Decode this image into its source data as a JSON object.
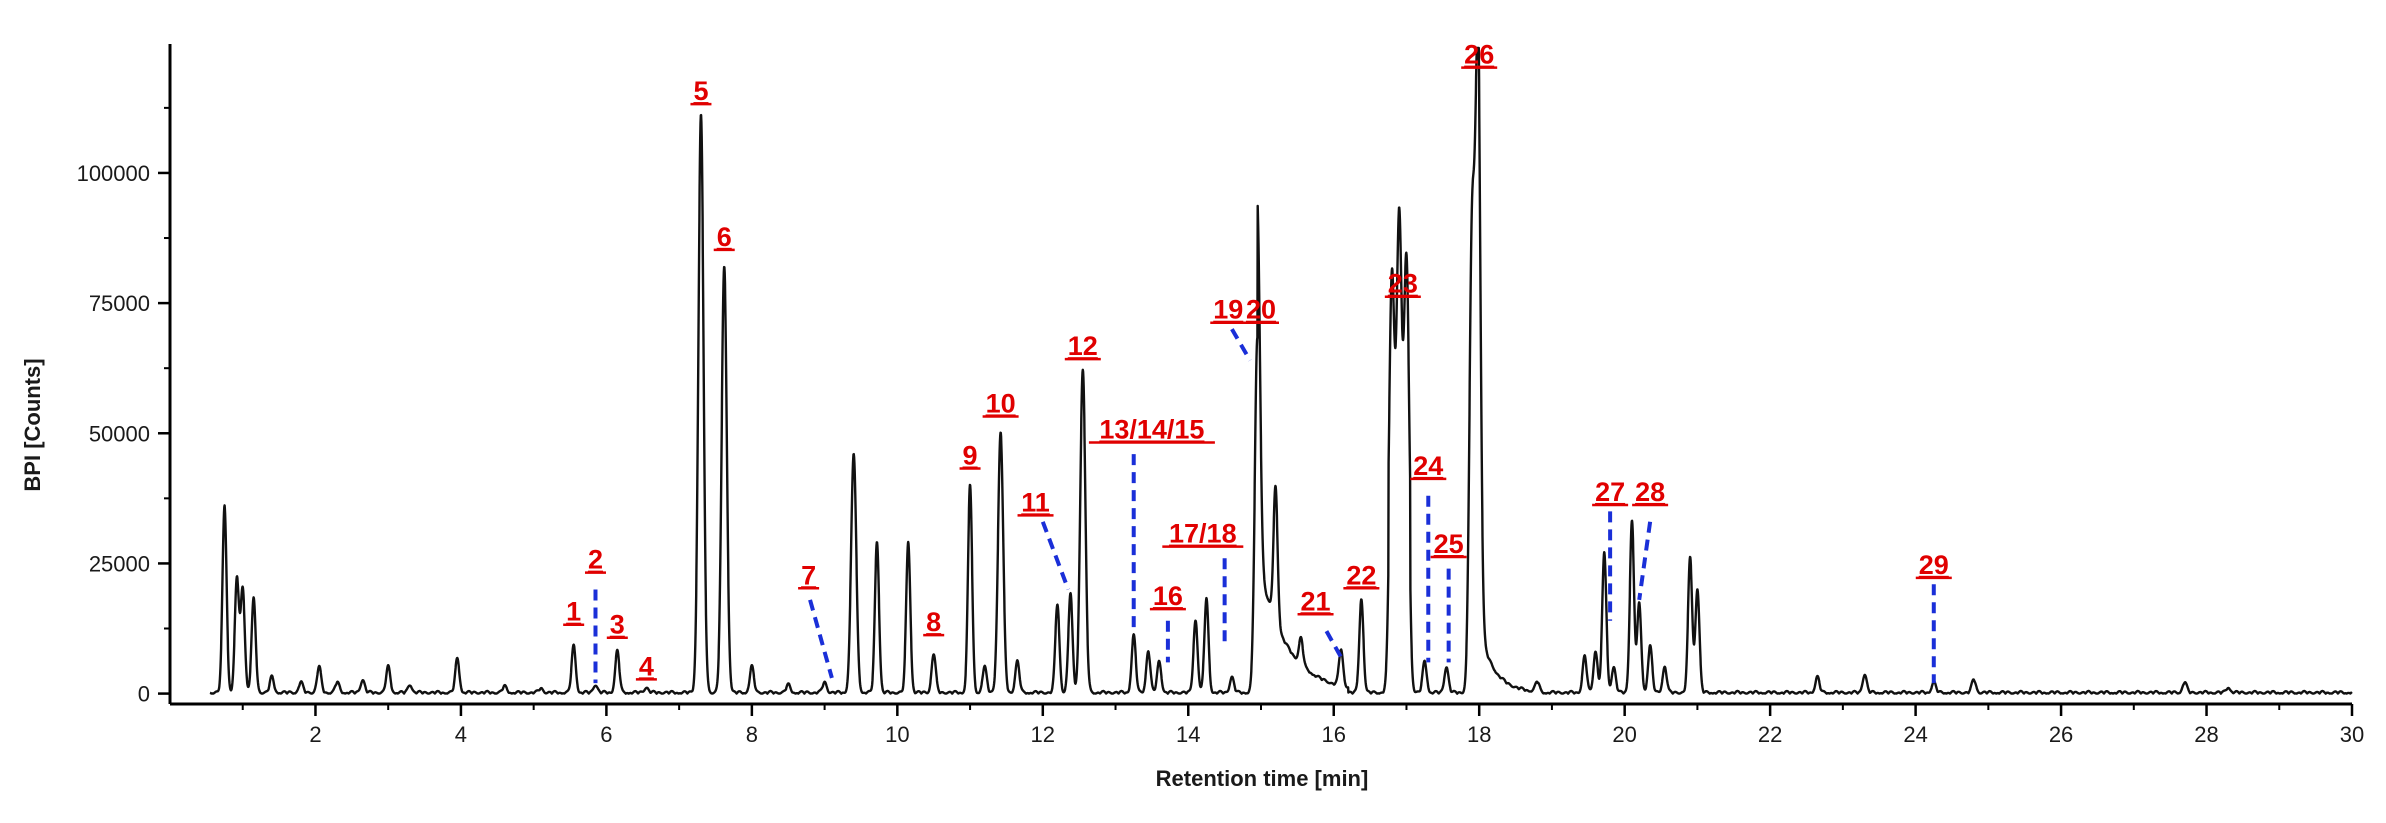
{
  "chart_data": {
    "type": "line",
    "title": "",
    "xlabel": "Retention time [min]",
    "ylabel": "BPI [Counts]",
    "xlim": [
      0,
      30
    ],
    "ylim": [
      -2000,
      124000
    ],
    "x_ticks": [
      2,
      4,
      6,
      8,
      10,
      12,
      14,
      16,
      18,
      20,
      22,
      24,
      26,
      28,
      30
    ],
    "x_tick_labels": [
      "2",
      "4",
      "6",
      "8",
      "10",
      "12",
      "14",
      "16",
      "18",
      "20",
      "22",
      "24",
      "26",
      "28",
      "30"
    ],
    "y_ticks": [
      0,
      25000,
      50000,
      75000,
      100000
    ],
    "y_tick_labels": [
      "0",
      "25000",
      "50000",
      "75000",
      "100000"
    ],
    "grid": false,
    "series": [
      {
        "color": "#111111",
        "peaks": [
          {
            "rt": 0.75,
            "height": 36000
          },
          {
            "rt": 0.92,
            "height": 22000
          },
          {
            "rt": 1.0,
            "height": 20000
          },
          {
            "rt": 1.15,
            "height": 18000
          },
          {
            "rt": 1.4,
            "height": 3000
          },
          {
            "rt": 1.8,
            "height": 2000
          },
          {
            "rt": 2.05,
            "height": 5000
          },
          {
            "rt": 2.3,
            "height": 2000
          },
          {
            "rt": 2.65,
            "height": 2500
          },
          {
            "rt": 3.0,
            "height": 5000
          },
          {
            "rt": 3.3,
            "height": 1500
          },
          {
            "rt": 3.95,
            "height": 6500
          },
          {
            "rt": 4.6,
            "height": 1200
          },
          {
            "rt": 5.1,
            "height": 800
          },
          {
            "rt": 5.55,
            "height": 9000
          },
          {
            "rt": 5.85,
            "height": 1500
          },
          {
            "rt": 6.15,
            "height": 8000
          },
          {
            "rt": 6.55,
            "height": 1000
          },
          {
            "rt": 7.3,
            "height": 111000
          },
          {
            "rt": 7.62,
            "height": 82000
          },
          {
            "rt": 8.0,
            "height": 5000
          },
          {
            "rt": 8.5,
            "height": 1500
          },
          {
            "rt": 9.0,
            "height": 2000
          },
          {
            "rt": 9.4,
            "height": 46000
          },
          {
            "rt": 9.72,
            "height": 29000
          },
          {
            "rt": 10.15,
            "height": 29000
          },
          {
            "rt": 10.5,
            "height": 7500
          },
          {
            "rt": 11.0,
            "height": 40000
          },
          {
            "rt": 11.2,
            "height": 5000
          },
          {
            "rt": 11.42,
            "height": 50000
          },
          {
            "rt": 11.65,
            "height": 6000
          },
          {
            "rt": 12.2,
            "height": 17000
          },
          {
            "rt": 12.38,
            "height": 19000
          },
          {
            "rt": 12.55,
            "height": 62000
          },
          {
            "rt": 13.25,
            "height": 11000
          },
          {
            "rt": 13.45,
            "height": 8000
          },
          {
            "rt": 13.6,
            "height": 6000
          },
          {
            "rt": 14.1,
            "height": 14000
          },
          {
            "rt": 14.25,
            "height": 18000
          },
          {
            "rt": 14.6,
            "height": 3000
          },
          {
            "rt": 14.95,
            "height": 68000
          },
          {
            "rt": 15.2,
            "height": 26000
          },
          {
            "rt": 15.55,
            "height": 5000
          },
          {
            "rt": 16.1,
            "height": 7000
          },
          {
            "rt": 16.38,
            "height": 18000
          },
          {
            "rt": 16.8,
            "height": 62000
          },
          {
            "rt": 16.9,
            "height": 73000
          },
          {
            "rt": 17.0,
            "height": 65000
          },
          {
            "rt": 17.25,
            "height": 6000
          },
          {
            "rt": 17.55,
            "height": 5000
          },
          {
            "rt": 17.9,
            "height": 85000
          },
          {
            "rt": 17.98,
            "height": 118000
          },
          {
            "rt": 18.8,
            "height": 2000
          },
          {
            "rt": 19.45,
            "height": 7000
          },
          {
            "rt": 19.6,
            "height": 8000
          },
          {
            "rt": 19.72,
            "height": 27000
          },
          {
            "rt": 19.85,
            "height": 5000
          },
          {
            "rt": 20.1,
            "height": 33000
          },
          {
            "rt": 20.2,
            "height": 17000
          },
          {
            "rt": 20.35,
            "height": 9000
          },
          {
            "rt": 20.55,
            "height": 5000
          },
          {
            "rt": 20.9,
            "height": 26000
          },
          {
            "rt": 21.0,
            "height": 20000
          },
          {
            "rt": 22.65,
            "height": 3000
          },
          {
            "rt": 23.3,
            "height": 3500
          },
          {
            "rt": 24.25,
            "height": 2000
          },
          {
            "rt": 24.8,
            "height": 2500
          },
          {
            "rt": 27.7,
            "height": 2000
          },
          {
            "rt": 28.3,
            "height": 1000
          }
        ]
      }
    ],
    "annotations": [
      {
        "label": "1",
        "x": 5.55,
        "y": 14000
      },
      {
        "label": "2",
        "x": 5.85,
        "y": 24000,
        "leader": [
          [
            5.85,
            20000
          ],
          [
            5.85,
            2000
          ]
        ]
      },
      {
        "label": "3",
        "x": 6.15,
        "y": 11500
      },
      {
        "label": "4",
        "x": 6.55,
        "y": 3500
      },
      {
        "label": "5",
        "x": 7.3,
        "y": 114000
      },
      {
        "label": "6",
        "x": 7.62,
        "y": 86000
      },
      {
        "label": "7",
        "x": 8.78,
        "y": 21000,
        "leader": [
          [
            8.8,
            18000
          ],
          [
            9.1,
            3000
          ]
        ]
      },
      {
        "label": "8",
        "x": 10.5,
        "y": 12000
      },
      {
        "label": "9",
        "x": 11.0,
        "y": 44000
      },
      {
        "label": "10",
        "x": 11.42,
        "y": 54000
      },
      {
        "label": "11",
        "x": 11.9,
        "y": 35000,
        "leader": [
          [
            12.0,
            33000
          ],
          [
            12.35,
            20000
          ]
        ]
      },
      {
        "label": "12",
        "x": 12.55,
        "y": 65000
      },
      {
        "label": "13/14/15",
        "x": 13.5,
        "y": 49000,
        "leader": [
          [
            13.25,
            46000
          ],
          [
            13.25,
            12000
          ]
        ]
      },
      {
        "label": "16",
        "x": 13.72,
        "y": 17000,
        "leader": [
          [
            13.72,
            14000
          ],
          [
            13.72,
            6000
          ]
        ]
      },
      {
        "label": "17/18",
        "x": 14.2,
        "y": 29000,
        "leader": [
          [
            14.5,
            26000
          ],
          [
            14.5,
            9000
          ]
        ]
      },
      {
        "label": "19",
        "x": 14.55,
        "y": 72000,
        "leader": [
          [
            14.6,
            70000
          ],
          [
            14.85,
            64000
          ]
        ]
      },
      {
        "label": "20",
        "x": 15.0,
        "y": 72000
      },
      {
        "label": "21",
        "x": 15.75,
        "y": 16000,
        "leader": [
          [
            15.9,
            12000
          ],
          [
            16.1,
            7000
          ]
        ]
      },
      {
        "label": "22",
        "x": 16.38,
        "y": 21000
      },
      {
        "label": "23",
        "x": 16.95,
        "y": 77000
      },
      {
        "label": "24",
        "x": 17.3,
        "y": 42000,
        "leader": [
          [
            17.3,
            38000
          ],
          [
            17.3,
            6000
          ]
        ]
      },
      {
        "label": "25",
        "x": 17.58,
        "y": 27000,
        "leader": [
          [
            17.58,
            24000
          ],
          [
            17.58,
            6000
          ]
        ]
      },
      {
        "label": "26",
        "x": 18.0,
        "y": 121000
      },
      {
        "label": "27",
        "x": 19.8,
        "y": 37000,
        "leader": [
          [
            19.8,
            35000
          ],
          [
            19.8,
            14000
          ]
        ]
      },
      {
        "label": "28",
        "x": 20.35,
        "y": 37000,
        "leader": [
          [
            20.35,
            33000
          ],
          [
            20.2,
            18000
          ]
        ]
      },
      {
        "label": "29",
        "x": 24.25,
        "y": 23000,
        "leader": [
          [
            24.25,
            21000
          ],
          [
            24.25,
            2000
          ]
        ]
      }
    ]
  },
  "colors": {
    "trace": "#111111",
    "label": "#e00000",
    "leader": "#1a2fd8"
  }
}
